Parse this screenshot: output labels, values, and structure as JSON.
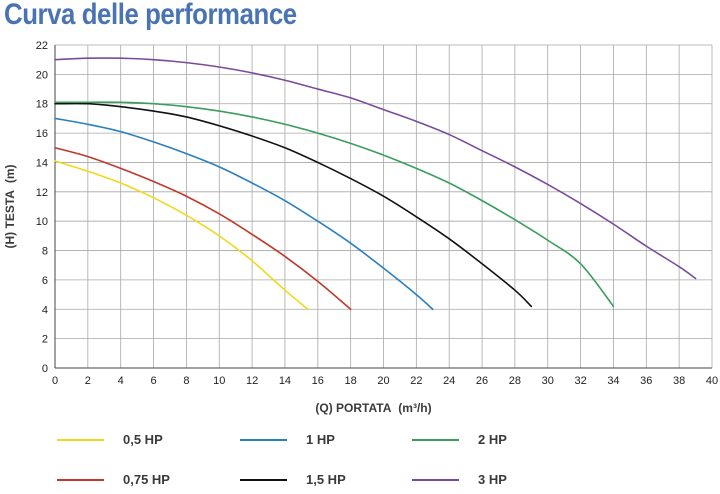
{
  "title": "Curva delle performance",
  "chart_data": {
    "type": "line",
    "xlabel_main": "(Q) PORTATA",
    "xlabel_unit": "(m³/h)",
    "ylabel_main": "(H) TESTA",
    "ylabel_unit": "(m)",
    "xlim": [
      0,
      40
    ],
    "ylim": [
      0,
      22
    ],
    "xticks": [
      "0",
      "2",
      "4",
      "6",
      "8",
      "10",
      "12",
      "14",
      "16",
      "18",
      "20",
      "22",
      "24",
      "26",
      "28",
      "30",
      "32",
      "34",
      "36",
      "38",
      "40"
    ],
    "yticks": [
      "0",
      "2",
      "4",
      "6",
      "8",
      "10",
      "12",
      "14",
      "16",
      "18",
      "20",
      "22"
    ],
    "grid": true,
    "legend_position": "bottom",
    "series": [
      {
        "name": "0,5 HP",
        "color": "#f2d81c",
        "x": [
          0,
          2,
          4,
          6,
          8,
          10,
          12,
          14,
          15.4
        ],
        "y": [
          14.1,
          13.4,
          12.6,
          11.6,
          10.4,
          9.0,
          7.3,
          5.3,
          4.0
        ]
      },
      {
        "name": "0,75 HP",
        "color": "#c0392b",
        "x": [
          0,
          2,
          4,
          6,
          8,
          10,
          12,
          14,
          16,
          18
        ],
        "y": [
          15.0,
          14.4,
          13.6,
          12.7,
          11.7,
          10.5,
          9.1,
          7.6,
          5.9,
          4.0
        ]
      },
      {
        "name": "1 HP",
        "color": "#2a7fc0",
        "x": [
          0,
          2,
          4,
          6,
          8,
          10,
          12,
          14,
          16,
          18,
          20,
          22,
          23
        ],
        "y": [
          17.0,
          16.6,
          16.1,
          15.4,
          14.6,
          13.7,
          12.6,
          11.4,
          10.0,
          8.5,
          6.8,
          5.0,
          4.0
        ]
      },
      {
        "name": "1,5 HP",
        "color": "#111111",
        "x": [
          0,
          2,
          4,
          6,
          8,
          10,
          12,
          14,
          16,
          18,
          20,
          22,
          24,
          26,
          28,
          29
        ],
        "y": [
          18.0,
          18.0,
          17.8,
          17.5,
          17.1,
          16.5,
          15.8,
          15.0,
          14.0,
          12.9,
          11.7,
          10.3,
          8.8,
          7.1,
          5.3,
          4.2
        ]
      },
      {
        "name": "2 HP",
        "color": "#3a9d5d",
        "x": [
          0,
          2,
          4,
          6,
          8,
          10,
          12,
          14,
          16,
          18,
          20,
          22,
          24,
          26,
          28,
          30,
          32,
          34
        ],
        "y": [
          18.1,
          18.1,
          18.1,
          18.0,
          17.8,
          17.5,
          17.1,
          16.6,
          16.0,
          15.3,
          14.5,
          13.6,
          12.6,
          11.4,
          10.1,
          8.7,
          7.1,
          4.2
        ]
      },
      {
        "name": "3 HP",
        "color": "#7a4b9a",
        "x": [
          0,
          2,
          4,
          6,
          8,
          10,
          12,
          14,
          16,
          18,
          20,
          22,
          24,
          26,
          28,
          30,
          32,
          34,
          36,
          38,
          39
        ],
        "y": [
          21.0,
          21.1,
          21.1,
          21.0,
          20.8,
          20.5,
          20.1,
          19.6,
          19.0,
          18.4,
          17.6,
          16.8,
          15.9,
          14.8,
          13.7,
          12.5,
          11.2,
          9.8,
          8.3,
          6.9,
          6.1
        ]
      }
    ]
  }
}
